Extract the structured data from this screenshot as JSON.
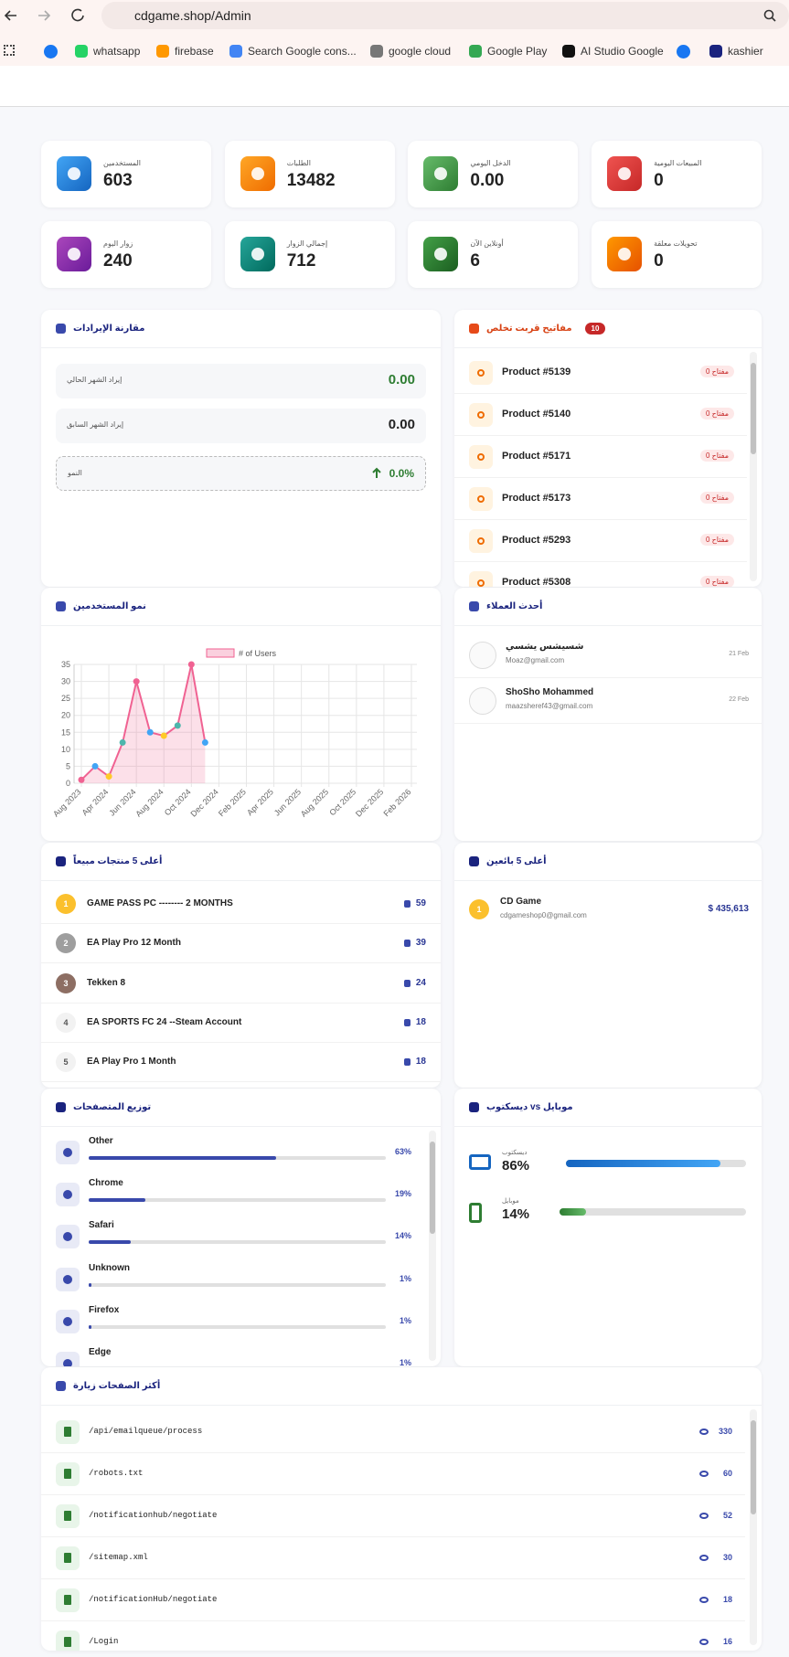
{
  "browser": {
    "url": "cdgame.shop/Admin",
    "bookmarks": [
      "whatsapp",
      "firebase",
      "Search Google cons...",
      "google cloud",
      "Google Play",
      "AI Studio Google",
      "kashier"
    ]
  },
  "stats": [
    {
      "label": "المستخدمين",
      "value": "603"
    },
    {
      "label": "الطلبات",
      "value": "13482"
    },
    {
      "label": "الدخل اليومي",
      "value": "0.00"
    },
    {
      "label": "المبيعات اليومية",
      "value": "0"
    },
    {
      "label": "زوار اليوم",
      "value": "240"
    },
    {
      "label": "إجمالي الزوار",
      "value": "712"
    },
    {
      "label": "أونلاين الآن",
      "value": "6"
    },
    {
      "label": "تحويلات معلقة",
      "value": "0"
    }
  ],
  "revenue": {
    "title": "مقارنة الإيرادات",
    "rows": [
      {
        "label": "إيراد الشهر الحالي",
        "value": "0.00"
      },
      {
        "label": "إيراد الشهر السابق",
        "value": "0.00"
      },
      {
        "label": "النمو",
        "value": "0.0%"
      }
    ]
  },
  "keys": {
    "title": "مفاتيح قربت تخلص",
    "count": "10",
    "items": [
      {
        "name": "Product #5139",
        "badge": "مفتاح 0"
      },
      {
        "name": "Product #5140",
        "badge": "مفتاح 0"
      },
      {
        "name": "Product #5171",
        "badge": "مفتاح 0"
      },
      {
        "name": "Product #5173",
        "badge": "مفتاح 0"
      },
      {
        "name": "Product #5293",
        "badge": "مفتاح 0"
      },
      {
        "name": "Product #5308",
        "badge": "مفتاح 0"
      }
    ]
  },
  "chart_data": {
    "type": "line",
    "title": "نمو المستخدمين",
    "categories": [
      "Aug 2023",
      null,
      "Apr 2024",
      null,
      "Jun 2024",
      null,
      "Aug 2024",
      null,
      "Oct 2024",
      null,
      "Dec 2024",
      null,
      "Feb 2025",
      null,
      "Apr 2025",
      null,
      "Jun 2025",
      null,
      "Aug 2025",
      null,
      "Oct 2025",
      null,
      "Dec 2025",
      null,
      "Feb 2026"
    ],
    "series": [
      {
        "name": "# of Users",
        "color": "#f06292",
        "values": [
          1,
          5,
          2,
          12,
          30,
          15,
          14,
          17,
          35,
          12,
          null,
          null,
          null,
          null,
          null,
          null,
          null,
          null,
          null,
          null,
          null,
          null,
          null,
          null,
          null
        ]
      }
    ],
    "ylim": [
      0,
      35
    ],
    "yticks": [
      0,
      5,
      10,
      15,
      20,
      25,
      30,
      35
    ],
    "grid": true
  },
  "customers": {
    "title": "أحدث العملاء",
    "items": [
      {
        "name": "شسيشس يشسي",
        "email": "Moaz@gmail.com",
        "date": "21 Feb"
      },
      {
        "name": "ShoSho Mohammed",
        "email": "maazsheref43@gmail.com",
        "date": "22 Feb"
      }
    ]
  },
  "top_products": {
    "title": "أعلى 5 منتجات مبيعاً",
    "items": [
      {
        "rank": "1",
        "name": "GAME PASS PC -------- 2 MONTHS",
        "count": "59"
      },
      {
        "rank": "2",
        "name": "EA Play Pro 12 Month",
        "count": "39"
      },
      {
        "rank": "3",
        "name": "Tekken 8",
        "count": "24"
      },
      {
        "rank": "4",
        "name": "EA SPORTS FC 24 --Steam Account",
        "count": "18"
      },
      {
        "rank": "5",
        "name": "EA Play Pro 1 Month",
        "count": "18"
      }
    ]
  },
  "top_sellers": {
    "title": "أعلى 5 بائعين",
    "items": [
      {
        "rank": "1",
        "name": "CD Game",
        "email": "cdgameshop0@gmail.com",
        "amount": "$ 435,613"
      }
    ]
  },
  "browsers": {
    "title": "توزيع المتصفحات",
    "names": [
      "Other",
      "Chrome",
      "Safari",
      "Unknown",
      "Firefox",
      "Edge"
    ],
    "values": [
      63,
      19,
      14,
      1,
      1,
      1
    ],
    "value_labels": [
      "63%",
      "19%",
      "14%",
      "1%",
      "1%",
      "1%"
    ]
  },
  "devices": {
    "title": "ديسكتوب vs موبايل",
    "names": [
      "ديسكتوب",
      "موبايل"
    ],
    "values": [
      86,
      14
    ],
    "value_labels": [
      "86%",
      "14%"
    ]
  },
  "pages": {
    "title": "أكثر الصفحات زيارة",
    "items": [
      {
        "path": "/api/emailqueue/process",
        "views": "330"
      },
      {
        "path": "/robots.txt",
        "views": "60"
      },
      {
        "path": "/notificationhub/negotiate",
        "views": "52"
      },
      {
        "path": "/sitemap.xml",
        "views": "30"
      },
      {
        "path": "/notificationHub/negotiate",
        "views": "18"
      },
      {
        "path": "/Login",
        "views": "16"
      }
    ]
  }
}
